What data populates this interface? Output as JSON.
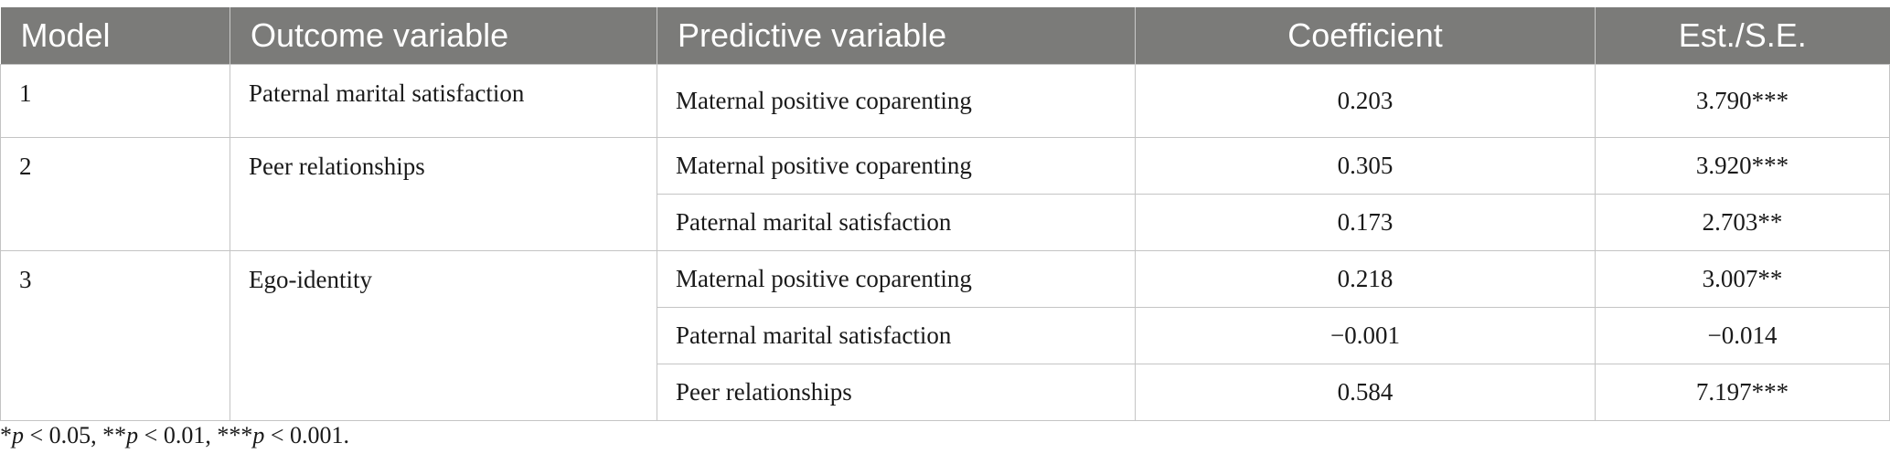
{
  "table": {
    "headers": {
      "model": "Model",
      "outcome": "Outcome variable",
      "predictor": "Predictive variable",
      "coefficient": "Coefficient",
      "est_se": "Est./S.E."
    },
    "rows": [
      {
        "model": "1",
        "outcome": "Paternal marital satisfaction",
        "predictor": "Maternal positive coparenting",
        "coefficient": "0.203",
        "est_se": "3.790***"
      },
      {
        "model": "2",
        "outcome": "Peer relationships",
        "predictor": "Maternal positive coparenting",
        "coefficient": "0.305",
        "est_se": "3.920***"
      },
      {
        "model": "",
        "outcome": "",
        "predictor": "Paternal marital satisfaction",
        "coefficient": "0.173",
        "est_se": "2.703**"
      },
      {
        "model": "3",
        "outcome": "Ego-identity",
        "predictor": "Maternal positive coparenting",
        "coefficient": "0.218",
        "est_se": "3.007**"
      },
      {
        "model": "",
        "outcome": "",
        "predictor": "Paternal marital satisfaction",
        "coefficient": "−0.001",
        "est_se": "−0.014"
      },
      {
        "model": "",
        "outcome": "",
        "predictor": "Peer relationships",
        "coefficient": "0.584",
        "est_se": "7.197***"
      }
    ]
  },
  "footnote": {
    "s1": "*",
    "p1": "p",
    "t1": " < 0.05, **",
    "p2": "p",
    "t2": " < 0.01, ***",
    "p3": "p",
    "t3": " < 0.001."
  },
  "colors": {
    "header_bg": "#7b7b79",
    "header_text": "#ffffff",
    "grid": "#c4c4c4"
  }
}
